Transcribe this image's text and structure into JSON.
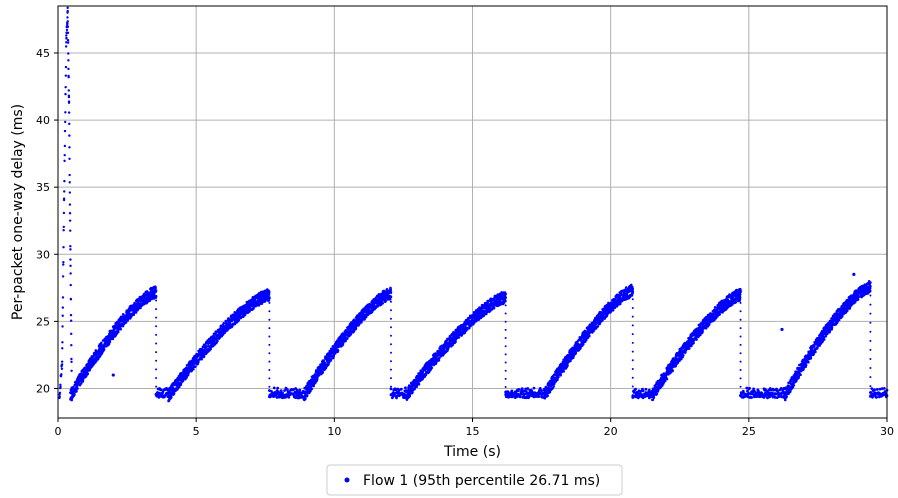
{
  "chart_data": {
    "type": "scatter",
    "xlabel": "Time (s)",
    "ylabel": "Per-packet one-way delay (ms)",
    "xlim": [
      0,
      30
    ],
    "ylim": [
      17.8,
      48.5
    ],
    "xticks": [
      0,
      5,
      10,
      15,
      20,
      25,
      30
    ],
    "yticks": [
      20,
      25,
      30,
      35,
      40,
      45
    ],
    "grid": true,
    "legend_position": "bottom-center",
    "series": [
      {
        "name": "Flow 1 (95th percentile 26.71 ms)",
        "color": "#0000ff",
        "startup_spike": [
          [
            0.05,
            19.3
          ],
          [
            0.15,
            22.0
          ],
          [
            0.22,
            34.0
          ],
          [
            0.3,
            46.0
          ],
          [
            0.35,
            48.0
          ],
          [
            0.4,
            41.0
          ],
          [
            0.45,
            30.0
          ],
          [
            0.5,
            19.5
          ]
        ],
        "sawtooth_cycles": [
          {
            "ramp_start": 0.45,
            "ramp_end": 3.55,
            "y_start": 19.5,
            "y_end": 27.2
          },
          {
            "floor_start": 3.55,
            "ramp_start": 4.0,
            "ramp_end": 7.65,
            "y_start": 19.5,
            "y_end": 27.0
          },
          {
            "floor_start": 7.65,
            "ramp_start": 8.9,
            "ramp_end": 12.05,
            "y_start": 19.5,
            "y_end": 27.1
          },
          {
            "floor_start": 12.05,
            "ramp_start": 12.6,
            "ramp_end": 16.2,
            "y_start": 19.5,
            "y_end": 26.8
          },
          {
            "floor_start": 16.2,
            "ramp_start": 17.6,
            "ramp_end": 20.8,
            "y_start": 19.5,
            "y_end": 27.3
          },
          {
            "floor_start": 20.8,
            "ramp_start": 21.5,
            "ramp_end": 24.7,
            "y_start": 19.5,
            "y_end": 27.0
          },
          {
            "floor_start": 24.7,
            "ramp_start": 26.3,
            "ramp_end": 29.4,
            "y_start": 19.5,
            "y_end": 27.6
          },
          {
            "floor_start": 29.4,
            "floor_end": 30.0,
            "y_start": 19.5
          }
        ],
        "outliers": [
          [
            2.0,
            21.0
          ],
          [
            26.2,
            24.4
          ],
          [
            28.8,
            28.5
          ]
        ]
      }
    ]
  }
}
